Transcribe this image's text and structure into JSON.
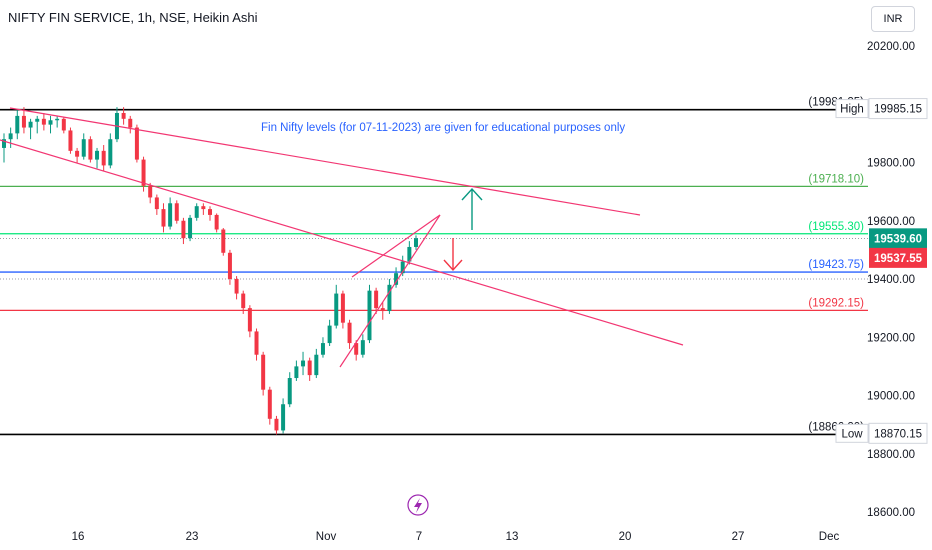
{
  "header": {
    "title": "NIFTY FIN SERVICE, 1h, NSE, Heikin Ashi",
    "currency": "INR"
  },
  "chart_data": {
    "type": "candlestick",
    "subtype": "Heikin Ashi",
    "annotation": "Fin Nifty levels (for 07-11-2023) are given for educational purposes only",
    "y_ticks": [
      "20200.00",
      "19800.00",
      "19600.00",
      "19400.00",
      "19200.00",
      "19000.00",
      "18800.00",
      "18600.00"
    ],
    "y_tick_values": [
      20200,
      19800,
      19600,
      19400,
      19200,
      19000,
      18800,
      18600
    ],
    "x_ticks": [
      "16",
      "23",
      "Nov",
      "7",
      "13",
      "20",
      "27",
      "Dec"
    ],
    "ylim": [
      18550,
      20350
    ],
    "levels": [
      {
        "label": "(19981.25)",
        "value": 19981.25,
        "color": "#000000"
      },
      {
        "label": "(19718.10)",
        "value": 19718.1,
        "color": "#4caf50"
      },
      {
        "label": "(19555.30)",
        "value": 19555.3,
        "color": "#00e676"
      },
      {
        "label": "(19423.75)",
        "value": 19423.75,
        "color": "#2962ff"
      },
      {
        "label": "(19292.15)",
        "value": 19292.15,
        "color": "#f23645"
      },
      {
        "label": "(18866.20)",
        "value": 18866.2,
        "color": "#000000"
      }
    ],
    "high": {
      "label": "High",
      "value": "19985.15",
      "numeric": 19985.15
    },
    "low": {
      "label": "Low",
      "value": "18870.15",
      "numeric": 18870.15
    },
    "price_badges": [
      {
        "value": "19539.60",
        "numeric": 19539.6,
        "color": "#089981"
      },
      {
        "value": "19537.55",
        "numeric": 19537.55,
        "color": "#f23645"
      }
    ],
    "colors": {
      "up": "#089981",
      "down": "#f23645",
      "trendline": "#f23672"
    },
    "candles": [
      [
        19850,
        19900,
        19800,
        19880
      ],
      [
        19880,
        19920,
        19850,
        19900
      ],
      [
        19900,
        19980,
        19880,
        19960
      ],
      [
        19960,
        19990,
        19900,
        19920
      ],
      [
        19920,
        19950,
        19880,
        19940
      ],
      [
        19940,
        19960,
        19900,
        19950
      ],
      [
        19950,
        19970,
        19910,
        19930
      ],
      [
        19930,
        19960,
        19900,
        19945
      ],
      [
        19945,
        19960,
        19920,
        19950
      ],
      [
        19950,
        19955,
        19900,
        19910
      ],
      [
        19910,
        19920,
        19830,
        19840
      ],
      [
        19840,
        19850,
        19800,
        19820
      ],
      [
        19820,
        19900,
        19810,
        19880
      ],
      [
        19880,
        19890,
        19800,
        19810
      ],
      [
        19810,
        19850,
        19780,
        19840
      ],
      [
        19840,
        19860,
        19770,
        19790
      ],
      [
        19790,
        19900,
        19780,
        19880
      ],
      [
        19880,
        19990,
        19870,
        19970
      ],
      [
        19970,
        19990,
        19930,
        19950
      ],
      [
        19950,
        19960,
        19900,
        19920
      ],
      [
        19920,
        19930,
        19800,
        19810
      ],
      [
        19810,
        19820,
        19700,
        19720
      ],
      [
        19720,
        19730,
        19660,
        19680
      ],
      [
        19680,
        19690,
        19620,
        19640
      ],
      [
        19640,
        19660,
        19560,
        19580
      ],
      [
        19580,
        19680,
        19570,
        19660
      ],
      [
        19660,
        19670,
        19590,
        19600
      ],
      [
        19600,
        19610,
        19520,
        19540
      ],
      [
        19540,
        19620,
        19530,
        19610
      ],
      [
        19610,
        19660,
        19600,
        19650
      ],
      [
        19650,
        19660,
        19620,
        19640
      ],
      [
        19640,
        19650,
        19600,
        19620
      ],
      [
        19620,
        19625,
        19560,
        19570
      ],
      [
        19570,
        19575,
        19480,
        19490
      ],
      [
        19490,
        19500,
        19380,
        19400
      ],
      [
        19400,
        19410,
        19330,
        19350
      ],
      [
        19350,
        19360,
        19280,
        19300
      ],
      [
        19300,
        19310,
        19200,
        19220
      ],
      [
        19220,
        19230,
        19120,
        19140
      ],
      [
        19140,
        19150,
        19000,
        19020
      ],
      [
        19020,
        19030,
        18900,
        18920
      ],
      [
        18920,
        18930,
        18866,
        18880
      ],
      [
        18880,
        18990,
        18870,
        18970
      ],
      [
        18970,
        19080,
        18960,
        19060
      ],
      [
        19060,
        19120,
        19050,
        19100
      ],
      [
        19100,
        19150,
        19070,
        19120
      ],
      [
        19120,
        19130,
        19050,
        19070
      ],
      [
        19070,
        19160,
        19060,
        19140
      ],
      [
        19140,
        19200,
        19130,
        19180
      ],
      [
        19180,
        19260,
        19170,
        19240
      ],
      [
        19240,
        19380,
        19230,
        19350
      ],
      [
        19350,
        19360,
        19230,
        19250
      ],
      [
        19250,
        19260,
        19160,
        19180
      ],
      [
        19180,
        19190,
        19120,
        19140
      ],
      [
        19140,
        19210,
        19130,
        19190
      ],
      [
        19190,
        19380,
        19180,
        19360
      ],
      [
        19360,
        19370,
        19280,
        19300
      ],
      [
        19300,
        19320,
        19260,
        19290
      ],
      [
        19290,
        19400,
        19280,
        19380
      ],
      [
        19380,
        19440,
        19370,
        19420
      ],
      [
        19420,
        19480,
        19410,
        19460
      ],
      [
        19460,
        19530,
        19450,
        19510
      ],
      [
        19510,
        19550,
        19500,
        19540
      ]
    ]
  }
}
